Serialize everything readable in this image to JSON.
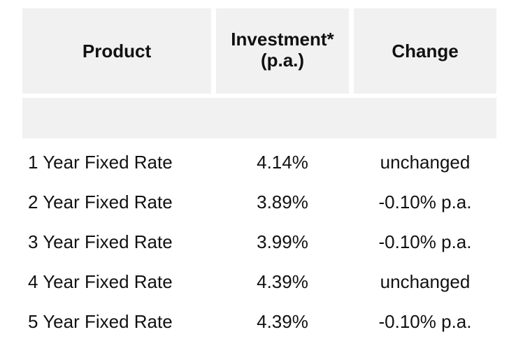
{
  "table": {
    "headers": {
      "product": "Product",
      "investment": "Investment*\n(p.a.)",
      "change": "Change"
    },
    "rows": [
      {
        "product": "1 Year Fixed Rate",
        "rate": "4.14%",
        "change": "unchanged"
      },
      {
        "product": "2 Year Fixed Rate",
        "rate": "3.89%",
        "change": "-0.10% p.a."
      },
      {
        "product": "3 Year Fixed Rate",
        "rate": "3.99%",
        "change": "-0.10% p.a."
      },
      {
        "product": "4 Year Fixed Rate",
        "rate": "4.39%",
        "change": "unchanged"
      },
      {
        "product": "5 Year Fixed Rate",
        "rate": "4.39%",
        "change": "-0.10% p.a."
      }
    ]
  }
}
